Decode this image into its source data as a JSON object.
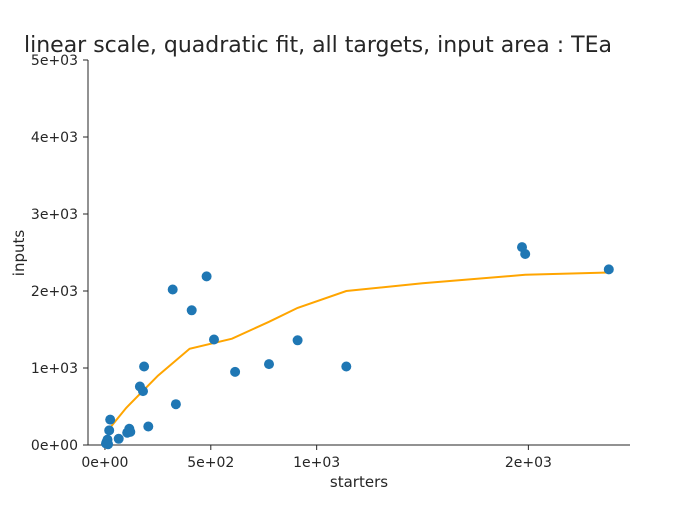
{
  "chart_data": {
    "type": "scatter",
    "title": "linear scale, quadratic fit, all targets, input area : TEa",
    "xlabel": "starters",
    "ylabel": "inputs",
    "xlim": [
      -80,
      2480
    ],
    "ylim": [
      0,
      5000
    ],
    "x_ticks": [
      0,
      500,
      1000,
      2000
    ],
    "x_tick_labels": [
      "0e+00",
      "5e+02",
      "1e+03",
      "2e+03"
    ],
    "y_ticks": [
      0,
      1000,
      2000,
      3000,
      4000,
      5000
    ],
    "y_tick_labels": [
      "0e+00",
      "1e+03",
      "2e+03",
      "3e+03",
      "4e+03",
      "5e+03"
    ],
    "grid": false,
    "scatter_color": "#1f77b4",
    "fit_color": "#ffa500",
    "points": [
      {
        "x": 5,
        "y": 20
      },
      {
        "x": 8,
        "y": 40
      },
      {
        "x": 12,
        "y": 70
      },
      {
        "x": 15,
        "y": 10
      },
      {
        "x": 20,
        "y": 190
      },
      {
        "x": 25,
        "y": 330
      },
      {
        "x": 65,
        "y": 80
      },
      {
        "x": 105,
        "y": 160
      },
      {
        "x": 115,
        "y": 210
      },
      {
        "x": 120,
        "y": 170
      },
      {
        "x": 165,
        "y": 760
      },
      {
        "x": 180,
        "y": 700
      },
      {
        "x": 185,
        "y": 1020
      },
      {
        "x": 205,
        "y": 240
      },
      {
        "x": 320,
        "y": 2020
      },
      {
        "x": 335,
        "y": 530
      },
      {
        "x": 410,
        "y": 1750
      },
      {
        "x": 480,
        "y": 2190
      },
      {
        "x": 515,
        "y": 1370
      },
      {
        "x": 615,
        "y": 950
      },
      {
        "x": 775,
        "y": 1050
      },
      {
        "x": 910,
        "y": 1360
      },
      {
        "x": 1140,
        "y": 1020
      },
      {
        "x": 1970,
        "y": 2570
      },
      {
        "x": 1985,
        "y": 2480
      },
      {
        "x": 2380,
        "y": 2280
      }
    ],
    "fit_line": [
      {
        "x": 5,
        "y": 160
      },
      {
        "x": 100,
        "y": 480
      },
      {
        "x": 250,
        "y": 900
      },
      {
        "x": 400,
        "y": 1250
      },
      {
        "x": 600,
        "y": 1380
      },
      {
        "x": 775,
        "y": 1600
      },
      {
        "x": 910,
        "y": 1780
      },
      {
        "x": 1140,
        "y": 2000
      },
      {
        "x": 1500,
        "y": 2100
      },
      {
        "x": 1985,
        "y": 2210
      },
      {
        "x": 2380,
        "y": 2240
      }
    ]
  }
}
